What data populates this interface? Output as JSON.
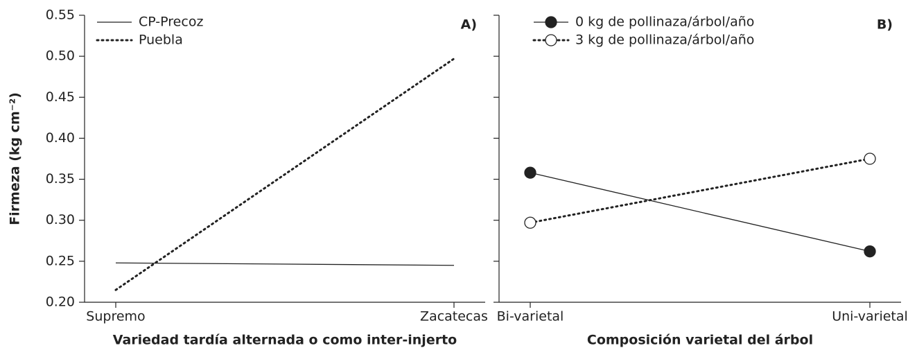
{
  "chart_data": [
    {
      "type": "line",
      "panel_label": "A)",
      "y_label": "Firmeza (kg cm⁻²)",
      "x_label": "Variedad tardía alternada o como inter-injerto",
      "categories": [
        "Supremo",
        "Zacatecas"
      ],
      "series": [
        {
          "name": "CP-Precoz",
          "color": "#222222",
          "dash": "solid",
          "values": [
            0.248,
            0.245
          ]
        },
        {
          "name": "Puebla",
          "color": "#222222",
          "dash": "dotted",
          "values": [
            0.215,
            0.497
          ]
        }
      ],
      "ylim": [
        0.2,
        0.55
      ],
      "yticks": [
        {
          "value": 0.2,
          "label": "0.20"
        },
        0.25,
        {
          "value": 0.3,
          "label": "0.30"
        },
        0.35,
        {
          "value": 0.4,
          "label": "0.40"
        },
        0.45,
        {
          "value": 0.5,
          "label": "0.50"
        },
        0.55
      ]
    },
    {
      "type": "line",
      "panel_label": "B)",
      "x_label": "Composición varietal del árbol",
      "categories": [
        "Bi-varietal",
        "Uni-varietal"
      ],
      "series": [
        {
          "name": "0 kg de pollinaza/árbol/año",
          "color": "#222222",
          "dash": "solid",
          "marker": "filled",
          "values": [
            0.358,
            0.262
          ]
        },
        {
          "name": "3 kg de pollinaza/árbol/año",
          "color": "#222222",
          "dash": "dotted",
          "marker": "open",
          "values": [
            0.297,
            0.375
          ]
        }
      ],
      "ylim": [
        0.2,
        0.55
      ],
      "yticks": [
        0.2,
        0.25,
        0.3,
        0.35,
        0.4,
        0.45,
        0.5,
        0.55
      ]
    }
  ]
}
